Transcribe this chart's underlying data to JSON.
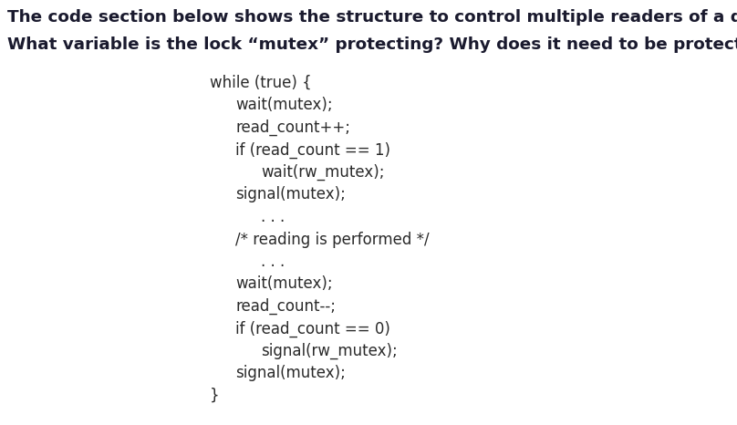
{
  "background_color": "#ffffff",
  "fig_width": 8.08,
  "fig_height": 4.66,
  "dpi": 100,
  "question_line1": "The code section below shows the structure to control multiple readers of a data.",
  "question_line2": "What variable is the lock “mutex” protecting? Why does it need to be protected?",
  "question_fontsize": 13.2,
  "question_color": "#1a1a2e",
  "code_fontsize": 12.0,
  "code_color": "#2a2a2a",
  "code_lines": [
    {
      "text": "while (true) {",
      "level": 0
    },
    {
      "text": "wait(mutex);",
      "level": 1
    },
    {
      "text": "read_count++;",
      "level": 1
    },
    {
      "text": "if (read_count == 1)",
      "level": 1
    },
    {
      "text": "wait(rw_mutex);",
      "level": 2
    },
    {
      "text": "signal(mutex);",
      "level": 1
    },
    {
      "text": ". . .",
      "level": 2,
      "gap_before": true
    },
    {
      "text": "/* reading is performed */",
      "level": 1
    },
    {
      "text": ". . .",
      "level": 2,
      "gap_before": true
    },
    {
      "text": "wait(mutex);",
      "level": 1
    },
    {
      "text": "read_count--;",
      "level": 1
    },
    {
      "text": "if (read_count == 0)",
      "level": 1
    },
    {
      "text": "signal(rw_mutex);",
      "level": 2
    },
    {
      "text": "signal(mutex);",
      "level": 1
    },
    {
      "text": "}",
      "level": 0
    }
  ]
}
